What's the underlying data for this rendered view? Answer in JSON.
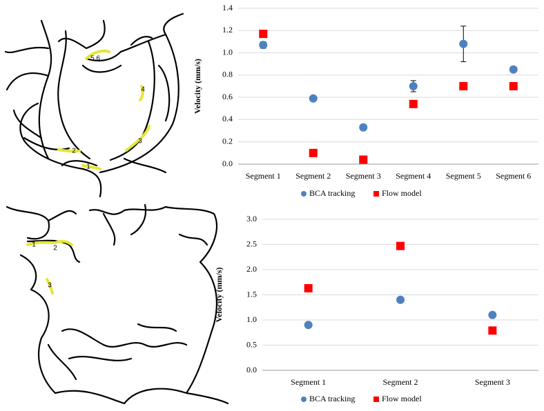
{
  "diagrams": [
    {
      "labels": [
        "5,6",
        "4",
        "3",
        "2",
        "1"
      ]
    },
    {
      "labels": [
        "1",
        "2",
        "3"
      ]
    }
  ],
  "chart_data": [
    {
      "type": "scatter",
      "ylabel": "Velocity (mm/s)",
      "categories": [
        "Segment 1",
        "Segment 2",
        "Segment 3",
        "Segment 4",
        "Segment 5",
        "Segment 6"
      ],
      "series": [
        {
          "name": "BCA tracking",
          "color": "#4f81bd",
          "marker": "circle",
          "values": [
            1.07,
            0.59,
            0.33,
            0.7,
            1.08,
            0.85
          ],
          "errors": [
            0.03,
            null,
            null,
            0.05,
            0.16,
            null
          ]
        },
        {
          "name": "Flow model",
          "color": "#ff0000",
          "marker": "square",
          "values": [
            1.17,
            0.1,
            0.04,
            0.54,
            0.7,
            0.7
          ]
        }
      ],
      "ylim": [
        0,
        1.4
      ],
      "yticks": [
        {
          "value": 0,
          "label": "0.0"
        },
        0.2,
        0.4,
        0.6,
        0.8,
        {
          "value": 1,
          "label": "1.0"
        },
        1.2,
        1.4
      ],
      "grid": true,
      "legend": "bottom"
    },
    {
      "type": "scatter",
      "ylabel": "Velocity (mm/s)",
      "categories": [
        "Segment 1",
        "Segment 2",
        "Segment 3"
      ],
      "series": [
        {
          "name": "BCA tracking",
          "color": "#4f81bd",
          "marker": "circle",
          "values": [
            0.9,
            1.4,
            1.1
          ]
        },
        {
          "name": "Flow model",
          "color": "#ff0000",
          "marker": "square",
          "values": [
            1.63,
            2.47,
            0.79
          ]
        }
      ],
      "ylim": [
        0,
        3
      ],
      "yticks": [
        {
          "value": 0,
          "label": "0.0"
        },
        0.5,
        {
          "value": 1,
          "label": "1.0"
        },
        1.5,
        {
          "value": 2,
          "label": "2.0"
        },
        2.5,
        {
          "value": 3,
          "label": "3.0"
        }
      ],
      "grid": true,
      "legend": "bottom"
    }
  ]
}
